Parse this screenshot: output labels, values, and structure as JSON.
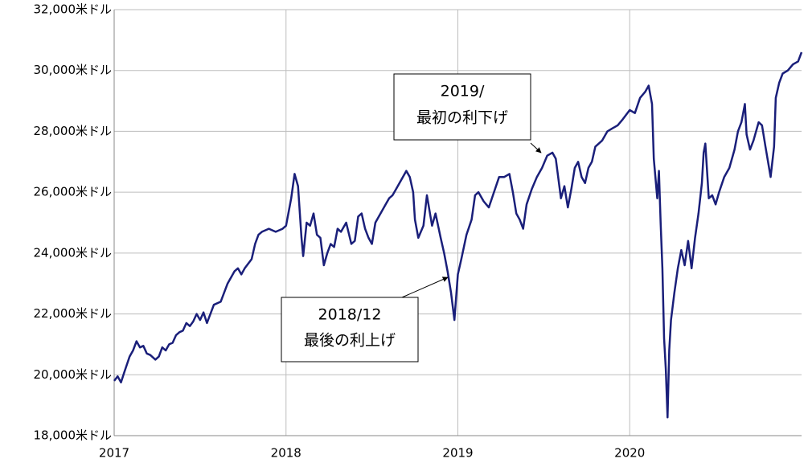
{
  "chart_data": {
    "type": "line",
    "x": [
      2017.0,
      2017.02,
      2017.04,
      2017.06,
      2017.09,
      2017.11,
      2017.13,
      2017.15,
      2017.17,
      2017.19,
      2017.21,
      2017.24,
      2017.26,
      2017.28,
      2017.3,
      2017.32,
      2017.34,
      2017.36,
      2017.38,
      2017.4,
      2017.42,
      2017.44,
      2017.46,
      2017.48,
      2017.5,
      2017.52,
      2017.54,
      2017.56,
      2017.58,
      2017.62,
      2017.64,
      2017.66,
      2017.68,
      2017.7,
      2017.72,
      2017.74,
      2017.76,
      2017.8,
      2017.82,
      2017.84,
      2017.86,
      2017.9,
      2017.94,
      2017.98,
      2018.0,
      2018.03,
      2018.05,
      2018.07,
      2018.09,
      2018.1,
      2018.12,
      2018.14,
      2018.16,
      2018.18,
      2018.2,
      2018.22,
      2018.24,
      2018.26,
      2018.28,
      2018.3,
      2018.32,
      2018.35,
      2018.38,
      2018.4,
      2018.42,
      2018.44,
      2018.46,
      2018.48,
      2018.5,
      2018.52,
      2018.55,
      2018.58,
      2018.6,
      2018.62,
      2018.64,
      2018.67,
      2018.7,
      2018.72,
      2018.74,
      2018.75,
      2018.77,
      2018.8,
      2018.82,
      2018.85,
      2018.87,
      2018.9,
      2018.92,
      2018.94,
      2018.96,
      2018.98,
      2019.0,
      2019.02,
      2019.05,
      2019.08,
      2019.1,
      2019.12,
      2019.15,
      2019.18,
      2019.21,
      2019.24,
      2019.27,
      2019.3,
      2019.32,
      2019.34,
      2019.36,
      2019.38,
      2019.4,
      2019.43,
      2019.46,
      2019.49,
      2019.52,
      2019.55,
      2019.57,
      2019.6,
      2019.62,
      2019.64,
      2019.66,
      2019.68,
      2019.7,
      2019.72,
      2019.74,
      2019.76,
      2019.78,
      2019.8,
      2019.84,
      2019.87,
      2019.9,
      2019.93,
      2019.96,
      2020.0,
      2020.03,
      2020.06,
      2020.09,
      2020.11,
      2020.13,
      2020.14,
      2020.16,
      2020.17,
      2020.18,
      2020.19,
      2020.2,
      2020.21,
      2020.22,
      2020.23,
      2020.24,
      2020.26,
      2020.28,
      2020.3,
      2020.32,
      2020.34,
      2020.36,
      2020.38,
      2020.4,
      2020.42,
      2020.43,
      2020.44,
      2020.46,
      2020.48,
      2020.5,
      2020.52,
      2020.55,
      2020.58,
      2020.61,
      2020.63,
      2020.65,
      2020.67,
      2020.68,
      2020.7,
      2020.72,
      2020.75,
      2020.77,
      2020.79,
      2020.82,
      2020.84,
      2020.85,
      2020.87,
      2020.89,
      2020.92,
      2020.95,
      2020.98,
      2021.0
    ],
    "series": [
      {
        "color": "#1a1f7a",
        "values": [
          19800,
          19950,
          19750,
          20100,
          20600,
          20800,
          21100,
          20900,
          20950,
          20700,
          20650,
          20500,
          20600,
          20900,
          20800,
          21000,
          21050,
          21300,
          21400,
          21450,
          21700,
          21600,
          21750,
          22000,
          21800,
          22050,
          21700,
          22000,
          22300,
          22400,
          22700,
          23000,
          23200,
          23400,
          23500,
          23300,
          23500,
          23800,
          24300,
          24600,
          24700,
          24800,
          24700,
          24800,
          24900,
          25800,
          26600,
          26200,
          24500,
          23900,
          25000,
          24900,
          25300,
          24600,
          24500,
          23600,
          24000,
          24300,
          24200,
          24800,
          24700,
          25000,
          24300,
          24400,
          25200,
          25300,
          24800,
          24500,
          24300,
          25000,
          25300,
          25600,
          25800,
          25900,
          26100,
          26400,
          26700,
          26500,
          26000,
          25100,
          24500,
          24900,
          25900,
          24900,
          25300,
          24500,
          24000,
          23400,
          22700,
          21800,
          23300,
          23800,
          24600,
          25100,
          25900,
          26000,
          25700,
          25500,
          26000,
          26500,
          26500,
          26600,
          26000,
          25300,
          25100,
          24800,
          25600,
          26100,
          26500,
          26800,
          27200,
          27300,
          27100,
          25800,
          26200,
          25500,
          26100,
          26800,
          27000,
          26500,
          26300,
          26800,
          27000,
          27500,
          27700,
          28000,
          28100,
          28200,
          28400,
          28700,
          28600,
          29100,
          29300,
          29500,
          28900,
          27100,
          25800,
          26700,
          25000,
          23500,
          21200,
          20200,
          18600,
          20800,
          21800,
          22700,
          23500,
          24100,
          23600,
          24400,
          23500,
          24500,
          25300,
          26300,
          27300,
          27600,
          25800,
          25900,
          25600,
          26000,
          26500,
          26800,
          27400,
          28000,
          28300,
          28900,
          27900,
          27400,
          27700,
          28300,
          28200,
          27500,
          26500,
          27500,
          29100,
          29600,
          29900,
          30000,
          30200,
          30300,
          30600
        ]
      }
    ],
    "xlim": [
      2017,
      2021
    ],
    "xticks": [
      2017,
      2018,
      2019,
      2020
    ],
    "ylim": [
      18000,
      32000
    ],
    "yticks": [
      {
        "value": 18000,
        "label": "18,000米ドル"
      },
      {
        "value": 20000,
        "label": "20,000米ドル"
      },
      {
        "value": 22000,
        "label": "22,000米ドル"
      },
      {
        "value": 24000,
        "label": "24,000米ドル"
      },
      {
        "value": 26000,
        "label": "26,000米ドル"
      },
      {
        "value": 28000,
        "label": "28,000米ドル"
      },
      {
        "value": 30000,
        "label": "30,000米ドル"
      },
      {
        "value": 32000,
        "label": "32,000米ドル"
      }
    ],
    "grid": true,
    "annotations": [
      {
        "lines": [
          "2019/",
          "最初の利下げ"
        ]
      },
      {
        "lines": [
          "2018/12",
          "最後の利上げ"
        ]
      }
    ]
  }
}
